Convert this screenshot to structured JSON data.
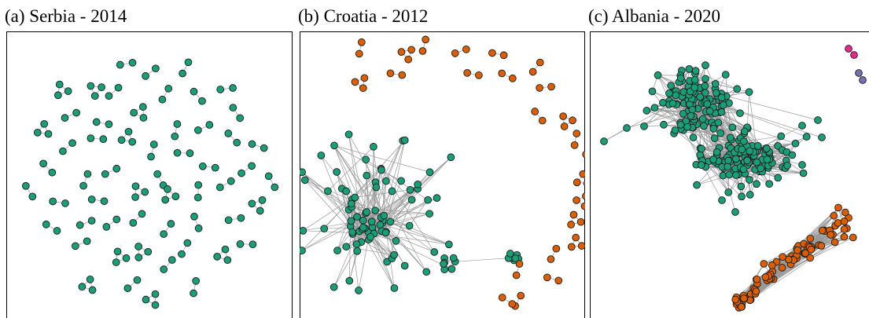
{
  "panels": [
    {
      "title": "(a) Serbia - 2014"
    },
    {
      "title": "(b) Croatia - 2012"
    },
    {
      "title": "(c) Albania - 2020"
    }
  ]
}
